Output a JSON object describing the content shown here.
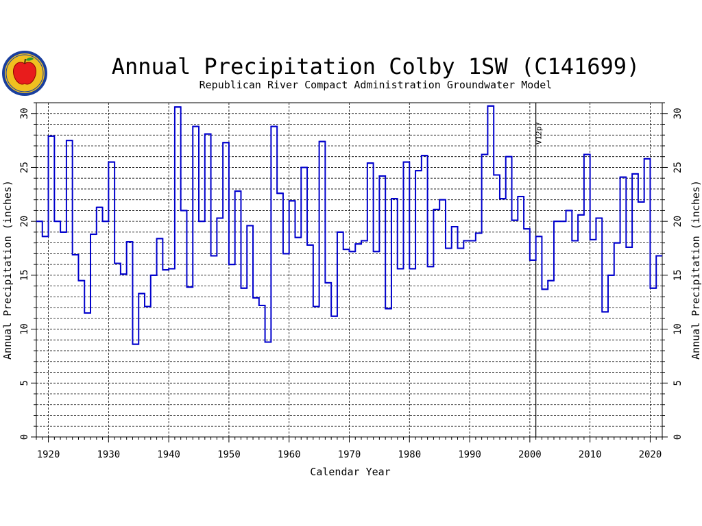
{
  "chart_data": {
    "type": "line",
    "step": true,
    "title": "Annual Precipitation Colby 1SW (C141699)",
    "subtitle": "Republican River Compact Administration Groundwater Model",
    "xlabel": "Calendar Year",
    "ylabel": "Annual Precipitation (inches)",
    "xlim": [
      1918,
      2022
    ],
    "ylim": [
      0,
      31
    ],
    "xticks": [
      1920,
      1930,
      1940,
      1950,
      1960,
      1970,
      1980,
      1990,
      2000,
      2010,
      2020
    ],
    "yticks": [
      0,
      5,
      10,
      15,
      20,
      25,
      30
    ],
    "grid": true,
    "line_color": "#0000cc",
    "annotation": {
      "label": "V12p7",
      "x": 2001
    },
    "series": [
      {
        "x": [
          1918,
          1919,
          1920,
          1921,
          1922,
          1923,
          1924,
          1925,
          1926,
          1927,
          1928,
          1929,
          1930,
          1931,
          1932,
          1933,
          1934,
          1935,
          1936,
          1937,
          1938,
          1939,
          1940,
          1941,
          1942,
          1943,
          1944,
          1945,
          1946,
          1947,
          1948,
          1949,
          1950,
          1951,
          1952,
          1953,
          1954,
          1955,
          1956,
          1957,
          1958,
          1959,
          1960,
          1961,
          1962,
          1963,
          1964,
          1965,
          1966,
          1967,
          1968,
          1969,
          1970,
          1971,
          1972,
          1973,
          1974,
          1975,
          1976,
          1977,
          1978,
          1979,
          1980,
          1981,
          1982,
          1983,
          1984,
          1985,
          1986,
          1987,
          1988,
          1989,
          1990,
          1991,
          1992,
          1993,
          1994,
          1995,
          1996,
          1997,
          1998,
          1999,
          2000,
          2001,
          2002,
          2003,
          2004,
          2005,
          2006,
          2007,
          2008,
          2009,
          2010,
          2011,
          2012,
          2013,
          2014,
          2015,
          2016,
          2017,
          2018,
          2019,
          2020,
          2021
        ],
        "values": [
          20.0,
          18.6,
          27.9,
          20.0,
          19.0,
          27.5,
          16.9,
          14.5,
          11.5,
          18.8,
          21.3,
          20.0,
          25.5,
          16.1,
          15.1,
          18.1,
          8.6,
          13.3,
          12.1,
          15.0,
          18.4,
          15.5,
          15.6,
          30.6,
          21.0,
          13.9,
          28.8,
          20.0,
          28.1,
          16.8,
          20.3,
          27.3,
          16.0,
          22.8,
          13.8,
          19.6,
          12.9,
          12.2,
          8.8,
          28.8,
          22.6,
          17.0,
          21.9,
          18.5,
          25.0,
          17.8,
          12.1,
          27.4,
          14.3,
          11.2,
          19.0,
          17.4,
          17.2,
          17.9,
          18.2,
          25.4,
          17.2,
          24.2,
          11.9,
          22.1,
          15.6,
          25.5,
          15.6,
          24.7,
          26.1,
          15.8,
          21.1,
          22.0,
          17.5,
          19.5,
          17.5,
          18.2,
          18.2,
          18.9,
          26.2,
          30.7,
          24.3,
          22.1,
          26.0,
          20.1,
          22.3,
          19.3,
          16.4,
          18.6,
          13.7,
          14.5,
          20.0,
          20.0,
          21.0,
          18.2,
          20.6,
          26.2,
          18.3,
          20.3,
          11.6,
          15.0,
          18.0,
          24.1,
          17.6,
          24.4,
          21.8,
          25.8,
          13.8,
          16.8
        ]
      }
    ]
  }
}
